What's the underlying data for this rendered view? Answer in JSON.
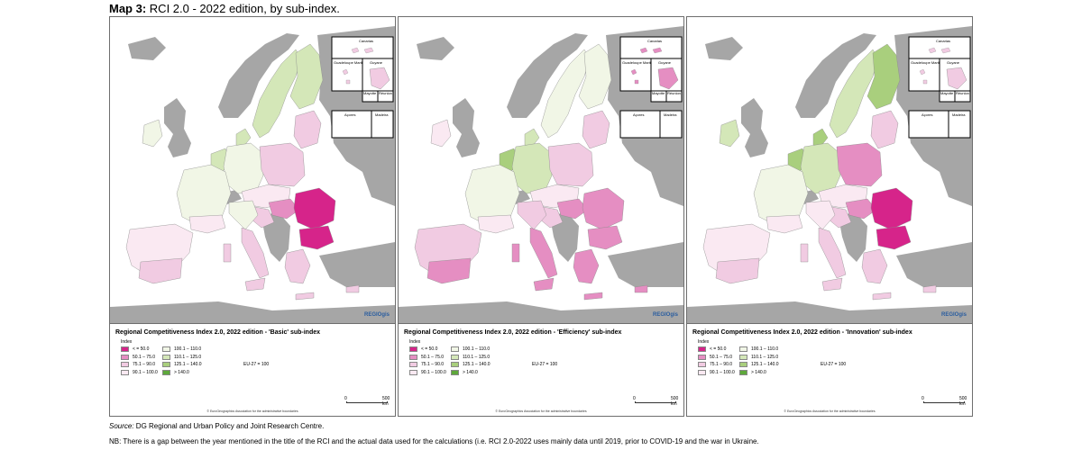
{
  "header": {
    "map_label": "Map 3:",
    "title": "RCI 2.0 - 2022 edition, by sub-index."
  },
  "colors": {
    "c1": "#d6248a",
    "c2": "#e58ec2",
    "c3": "#f1cbe2",
    "c4": "#fae9f2",
    "c5": "#f1f6e6",
    "c6": "#d4e7b8",
    "c7": "#a9cf7d",
    "c8": "#5ea83b",
    "non_eu": "#a6a6a6",
    "sea": "#ffffff"
  },
  "insets": {
    "canarias": "Canarias",
    "guadeloupe": "Guadeloupe Martinique",
    "guyane": "Guyane",
    "mayotte": "Mayotte",
    "reunion": "Réunion",
    "acores": "Açores",
    "madeira": "Madeira"
  },
  "legend": {
    "index_label": "Index",
    "items_col1": [
      "< = 50.0",
      "50.1 – 75.0",
      "75.1 – 90.0",
      "90.1 – 100.0"
    ],
    "items_col2": [
      "100.1 – 110.0",
      "110.1 – 125.0",
      "125.1 – 140.0",
      "> 140.0"
    ],
    "eu_note": "EU-27 = 100",
    "scale_0": "0",
    "scale_500": "500 km",
    "copyright": "© EuroGeographics Association for the administrative boundaries",
    "regio": "REGIOgis"
  },
  "panels": [
    {
      "title": "Regional Competitiveness Index 2.0, 2022 edition - 'Basic' sub-index"
    },
    {
      "title": "Regional Competitiveness Index 2.0, 2022 edition - 'Efficiency' sub-index"
    },
    {
      "title": "Regional Competitiveness Index 2.0, 2022 edition - 'Innovation' sub-index"
    }
  ],
  "footer": {
    "source_label": "Source:",
    "source_text": " DG Regional and Urban Policy and Joint Research Centre.",
    "nb": "NB: There is a gap between the year mentioned in the title of the RCI and the actual data used for the calculations (i.e. RCI 2.0-2022 uses mainly data until 2019, prior to COVID-19 and the war in Ukraine."
  }
}
